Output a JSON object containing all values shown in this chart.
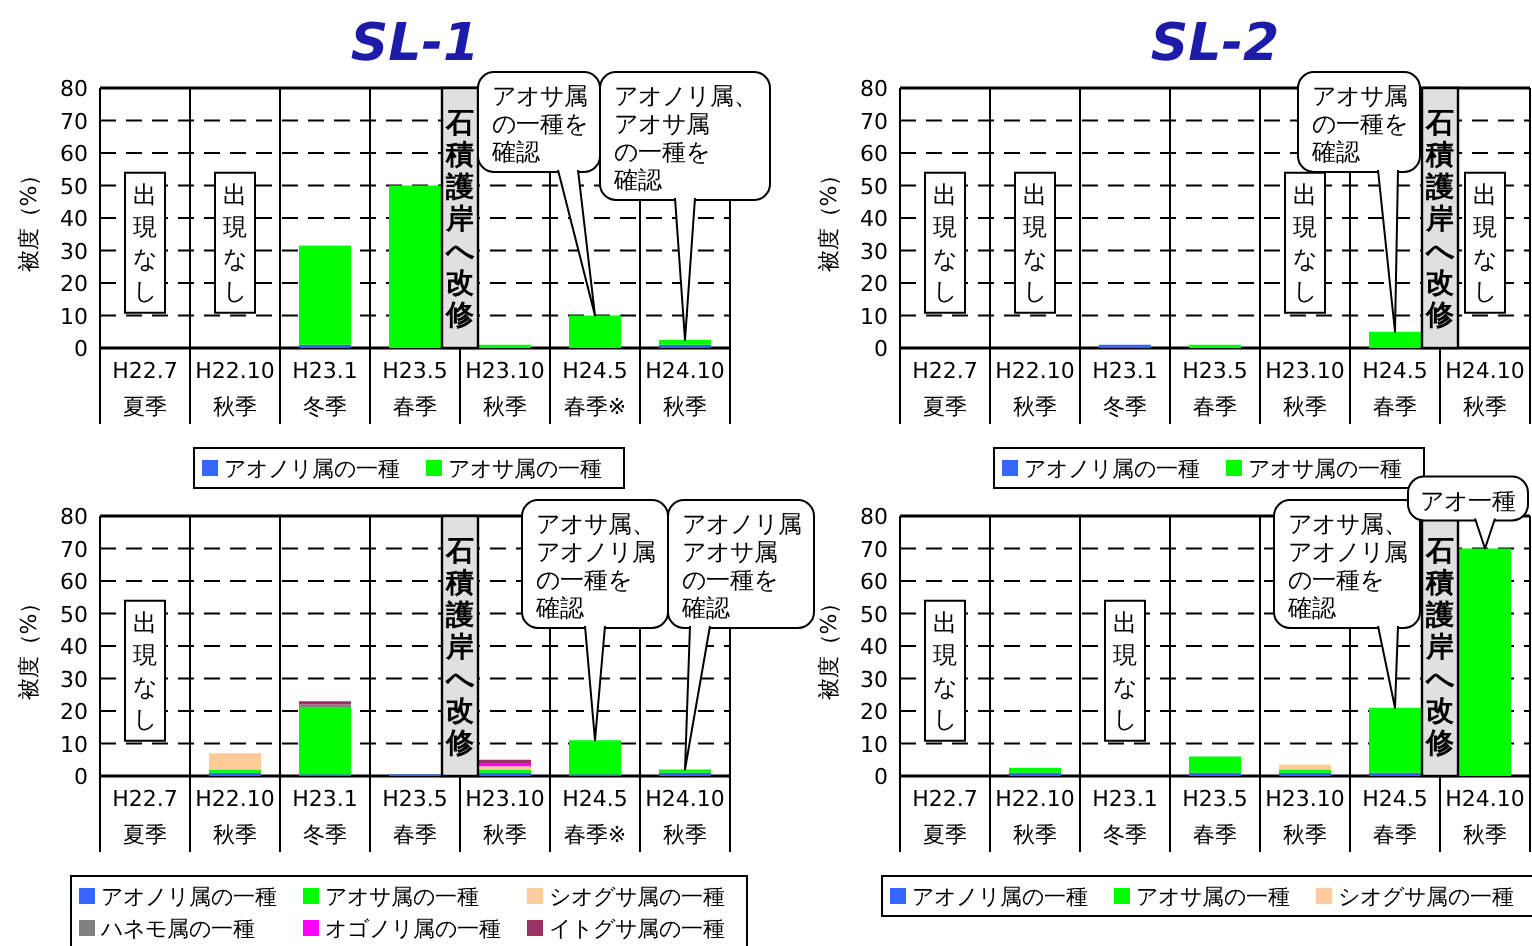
{
  "chart_data": [
    {
      "type": "bar",
      "stacked": true,
      "title": "SL-1",
      "ylabel": "被度（%）",
      "ylim": [
        0,
        80
      ],
      "yticks": [
        0,
        10,
        20,
        30,
        40,
        50,
        60,
        70,
        80
      ],
      "grid": "y",
      "legend": "bottom",
      "categories": [
        "H22.7\n夏季",
        "H22.10\n秋季",
        "H23.1\n冬季",
        "H23.5\n春季",
        "H23.10\n秋季",
        "H24.5\n春季※",
        "H24.10\n秋季"
      ],
      "series": [
        {
          "name": "アオノリ属の一種",
          "color": "#3366ff",
          "values": [
            null,
            null,
            1,
            null,
            null,
            null,
            1
          ]
        },
        {
          "name": "アオサ属の一種",
          "color": "#00ff00",
          "values": [
            null,
            null,
            30.5,
            50,
            1,
            10,
            1.5
          ]
        }
      ],
      "bands": [
        {
          "axis": "x",
          "from": "H23.5\n春季",
          "to": "H23.10\n秋季",
          "label": "石積護岸へ改修",
          "color": "#e0e0e0"
        }
      ],
      "annotations": [
        "出現なし",
        "出現なし",
        {
          "text": "アオノリ属、アオサ属の一種を確認",
          "x": "H24.10\n秋季",
          "y": 2.5
        },
        {
          "text": "アオサ属の一種を確認",
          "x": "H24.5\n春季※",
          "y": 10
        }
      ]
    },
    {
      "type": "bar",
      "stacked": true,
      "title": "SL-2",
      "ylabel": "被度（%）",
      "ylim": [
        0,
        80
      ],
      "yticks": [
        0,
        10,
        20,
        30,
        40,
        50,
        60,
        70,
        80
      ],
      "grid": "y",
      "legend": "bottom",
      "categories": [
        "H22.7\n夏季",
        "H22.10\n秋季",
        "H23.1\n冬季",
        "H23.5\n春季",
        "H23.10\n秋季",
        "H24.5\n春季",
        "H24.10\n秋季"
      ],
      "series": [
        {
          "name": "アオノリ属の一種",
          "color": "#3366ff",
          "values": [
            null,
            null,
            1,
            null,
            null,
            null,
            null
          ]
        },
        {
          "name": "アオサ属の一種",
          "color": "#00ff00",
          "values": [
            null,
            null,
            null,
            1,
            null,
            5,
            null
          ]
        }
      ],
      "bands": [
        {
          "axis": "x",
          "from": "H24.5\n春季",
          "to": "H24.10\n秋季",
          "label": "石積護岸へ改修",
          "color": "#e0e0e0"
        }
      ],
      "annotations": [
        "出現なし",
        "出現なし",
        "出現なし",
        "出現なし",
        {
          "text": "アオサ属の一種を確認",
          "x": "H24.5\n春季",
          "y": 5
        }
      ]
    },
    {
      "type": "bar",
      "stacked": true,
      "ylabel": "被度（%）",
      "ylim": [
        0,
        80
      ],
      "yticks": [
        0,
        10,
        20,
        30,
        40,
        50,
        60,
        70,
        80
      ],
      "grid": "y",
      "legend": "bottom",
      "categories": [
        "H22.7\n夏季",
        "H22.10\n秋季",
        "H23.1\n冬季",
        "H23.5\n春季",
        "H23.10\n秋季",
        "H24.5\n春季※",
        "H24.10\n秋季"
      ],
      "series": [
        {
          "name": "アオノリ属の一種",
          "color": "#3366ff",
          "values": [
            null,
            1,
            0.5,
            0.5,
            1,
            0.5,
            1
          ]
        },
        {
          "name": "アオサ属の一種",
          "color": "#00ff00",
          "values": [
            null,
            1,
            20.5,
            null,
            1,
            10.5,
            1
          ]
        },
        {
          "name": "シオグサ属の一種",
          "color": "#ffcc99",
          "values": [
            null,
            5,
            null,
            null,
            1,
            null,
            null
          ]
        },
        {
          "name": "ハネモ属の一種",
          "color": "#808080",
          "values": [
            null,
            null,
            1,
            null,
            null,
            null,
            null
          ]
        },
        {
          "name": "オゴノリ属の一種",
          "color": "#ff00ff",
          "values": [
            null,
            null,
            null,
            null,
            1,
            null,
            null
          ]
        },
        {
          "name": "イトグサ属の一種",
          "color": "#993366",
          "values": [
            null,
            null,
            1,
            null,
            1,
            null,
            null
          ]
        }
      ],
      "bands": [
        {
          "axis": "x",
          "from": "H23.5\n春季",
          "to": "H23.10\n秋季",
          "label": "石積護岸へ改修",
          "color": "#e0e0e0"
        }
      ],
      "annotations": [
        "出現なし",
        {
          "text": "アオサ属、アオノリ属の一種を確認",
          "x": "H24.5\n春季※",
          "y": 11
        },
        {
          "text": "アオノリ属アオサ属の一種を確認",
          "x": "H24.10\n秋季",
          "y": 2
        }
      ]
    },
    {
      "type": "bar",
      "stacked": true,
      "ylabel": "被度（%）",
      "ylim": [
        0,
        80
      ],
      "yticks": [
        0,
        10,
        20,
        30,
        40,
        50,
        60,
        70,
        80
      ],
      "grid": "y",
      "legend": "bottom",
      "categories": [
        "H22.7\n夏季",
        "H22.10\n秋季",
        "H23.1\n冬季",
        "H23.5\n春季",
        "H23.10\n秋季",
        "H24.5\n春季",
        "H24.10\n秋季"
      ],
      "series": [
        {
          "name": "アオノリ属の一種",
          "color": "#3366ff",
          "values": [
            null,
            1,
            null,
            1,
            1,
            1,
            null
          ]
        },
        {
          "name": "アオサ属の一種",
          "color": "#00ff00",
          "values": [
            null,
            1.5,
            null,
            5,
            1,
            20,
            70
          ]
        },
        {
          "name": "シオグサ属の一種",
          "color": "#ffcc99",
          "values": [
            null,
            null,
            null,
            null,
            1.5,
            null,
            null
          ]
        }
      ],
      "bands": [
        {
          "axis": "x",
          "from": "H24.5\n春季",
          "to": "H24.10\n秋季",
          "label": "石積護岸へ改修",
          "color": "#e0e0e0"
        }
      ],
      "annotations": [
        "出現なし",
        "出現なし",
        {
          "text": "アオサ属、アオノリ属の一種を確認",
          "x": "H24.5\n春季",
          "y": 21
        },
        {
          "text": "アオ一種",
          "x": "H24.10\n秋季",
          "y": 70
        }
      ]
    }
  ]
}
